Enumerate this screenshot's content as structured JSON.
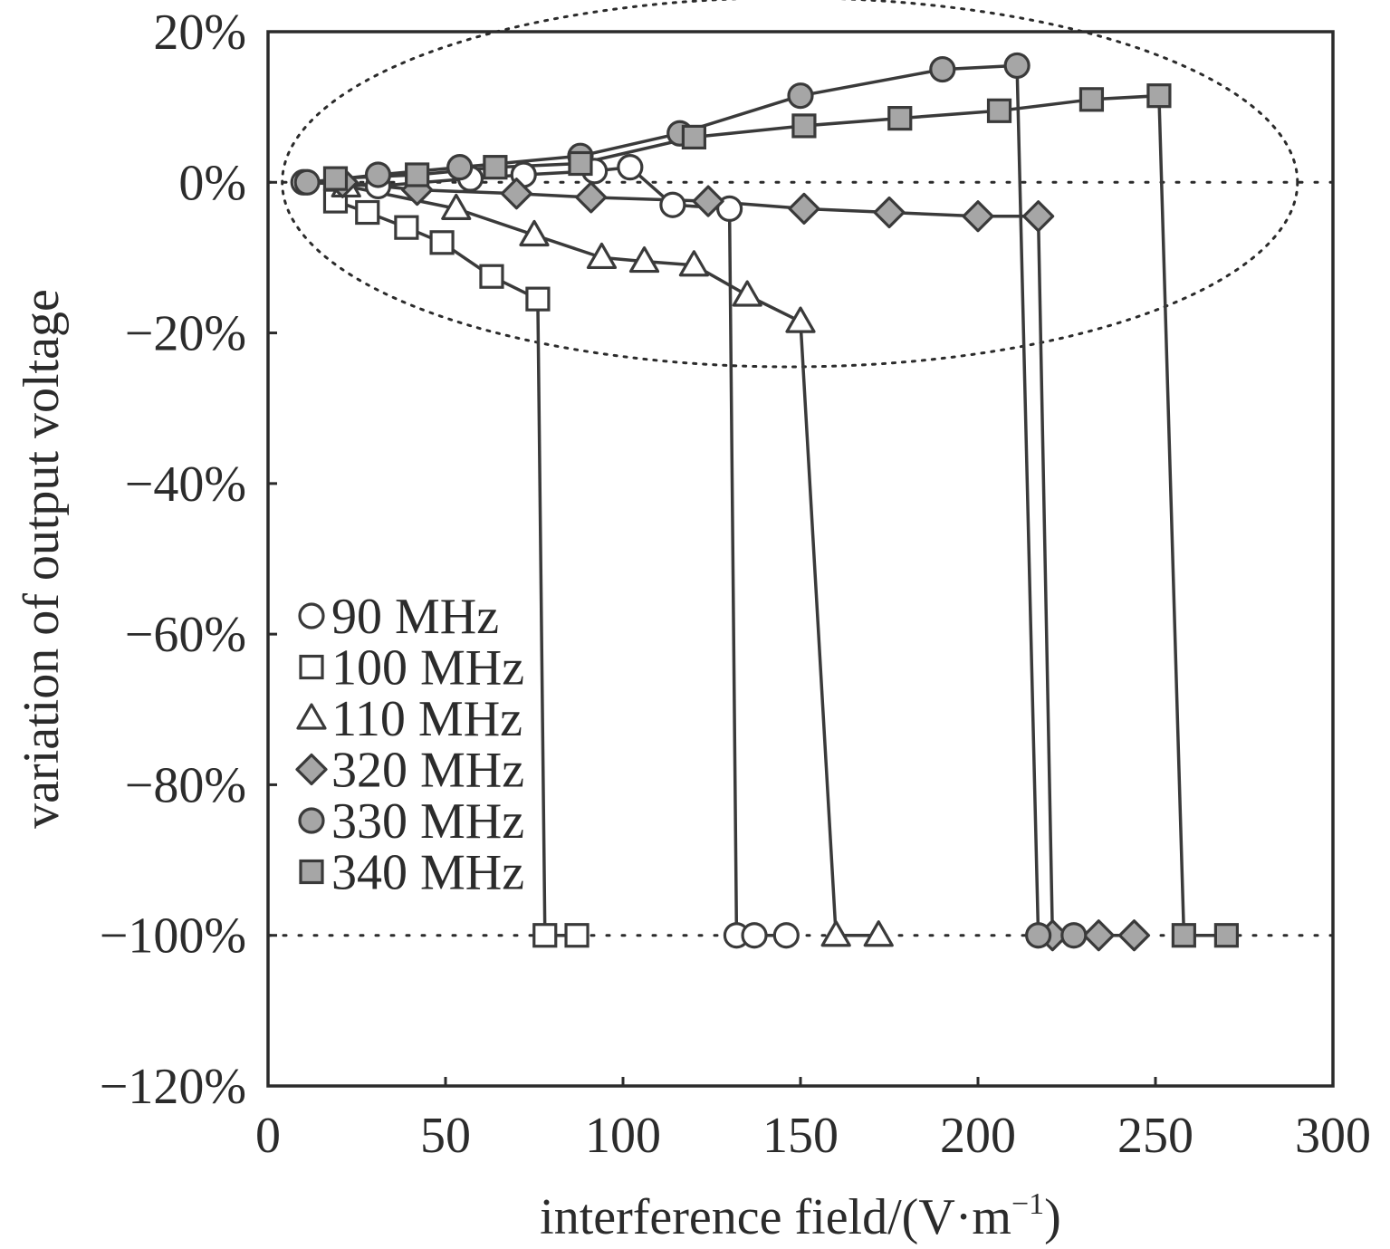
{
  "chart_data": {
    "type": "line",
    "xlabel": "interference field/(V·m",
    "xlabel_sup": "−1",
    "xlabel_tail": ")",
    "ylabel": "variation of output voltage",
    "xlim": [
      0,
      300
    ],
    "ylim": [
      -120,
      20
    ],
    "x_ticks": [
      0,
      50,
      100,
      150,
      200,
      250,
      300
    ],
    "x_tick_labels": [
      "0",
      "50",
      "100",
      "150",
      "200",
      "250",
      "300"
    ],
    "y_ticks": [
      20,
      0,
      -20,
      -40,
      -60,
      -80,
      -100,
      -120
    ],
    "y_tick_labels": [
      "20%",
      "0%",
      "−20%",
      "−40%",
      "−60%",
      "−80%",
      "−100%",
      "−120%"
    ],
    "grid": false,
    "reference_lines": [
      0,
      -100
    ],
    "annotation": "dotted ellipse around the 0% band (stable region)",
    "ellipse_data": {
      "cx": 147,
      "cy": 0,
      "rx": 143,
      "ry": 24.5
    },
    "legend_position": "lower-left",
    "series": [
      {
        "name": "90 MHz",
        "marker": "circle",
        "fill": "#ffffff",
        "x": [
          10,
          31,
          57,
          72,
          92,
          102,
          114,
          130,
          132,
          137,
          146
        ],
        "y": [
          0,
          -0.5,
          0.5,
          1,
          1.5,
          2,
          -3,
          -3.5,
          -100,
          -100,
          -100
        ]
      },
      {
        "name": "100 MHz",
        "marker": "square",
        "fill": "#ffffff",
        "x": [
          19,
          28,
          39,
          49,
          63,
          76,
          78,
          87
        ],
        "y": [
          -2.5,
          -4,
          -6,
          -8,
          -12.5,
          -15.5,
          -100,
          -100
        ]
      },
      {
        "name": "110 MHz",
        "marker": "triangle",
        "fill": "#ffffff",
        "x": [
          22,
          53,
          75,
          94,
          106,
          120,
          135,
          150,
          160,
          172
        ],
        "y": [
          -0.5,
          -3.5,
          -7,
          -10,
          -10.5,
          -11,
          -15,
          -18.5,
          -100,
          -100
        ]
      },
      {
        "name": "320 MHz",
        "marker": "diamond",
        "fill": "#a6a6a6",
        "x": [
          21,
          42,
          70,
          91,
          124,
          151,
          175,
          200,
          217,
          221,
          234,
          244
        ],
        "y": [
          0,
          -1,
          -1.5,
          -2,
          -2.5,
          -3.5,
          -4,
          -4.5,
          -4.5,
          -100,
          -100,
          -100
        ]
      },
      {
        "name": "330 MHz",
        "marker": "circle",
        "fill": "#a6a6a6",
        "x": [
          11,
          31,
          54,
          88,
          116,
          150,
          190,
          211,
          217,
          227
        ],
        "y": [
          0,
          1,
          2,
          3.5,
          6.5,
          11.5,
          15,
          15.5,
          -100,
          -100
        ]
      },
      {
        "name": "340 MHz",
        "marker": "square",
        "fill": "#a6a6a6",
        "x": [
          19,
          42,
          64,
          88,
          120,
          151,
          178,
          206,
          232,
          251,
          258,
          270
        ],
        "y": [
          0.5,
          1,
          2,
          2.5,
          6,
          7.5,
          8.5,
          9.5,
          11,
          11.5,
          -100,
          -100
        ]
      }
    ]
  },
  "style": {
    "line_color": "#3a3a3a",
    "marker_stroke": "#3a3a3a",
    "axis_color": "#2b2b2b",
    "dotted_color": "#2b2b2b"
  }
}
